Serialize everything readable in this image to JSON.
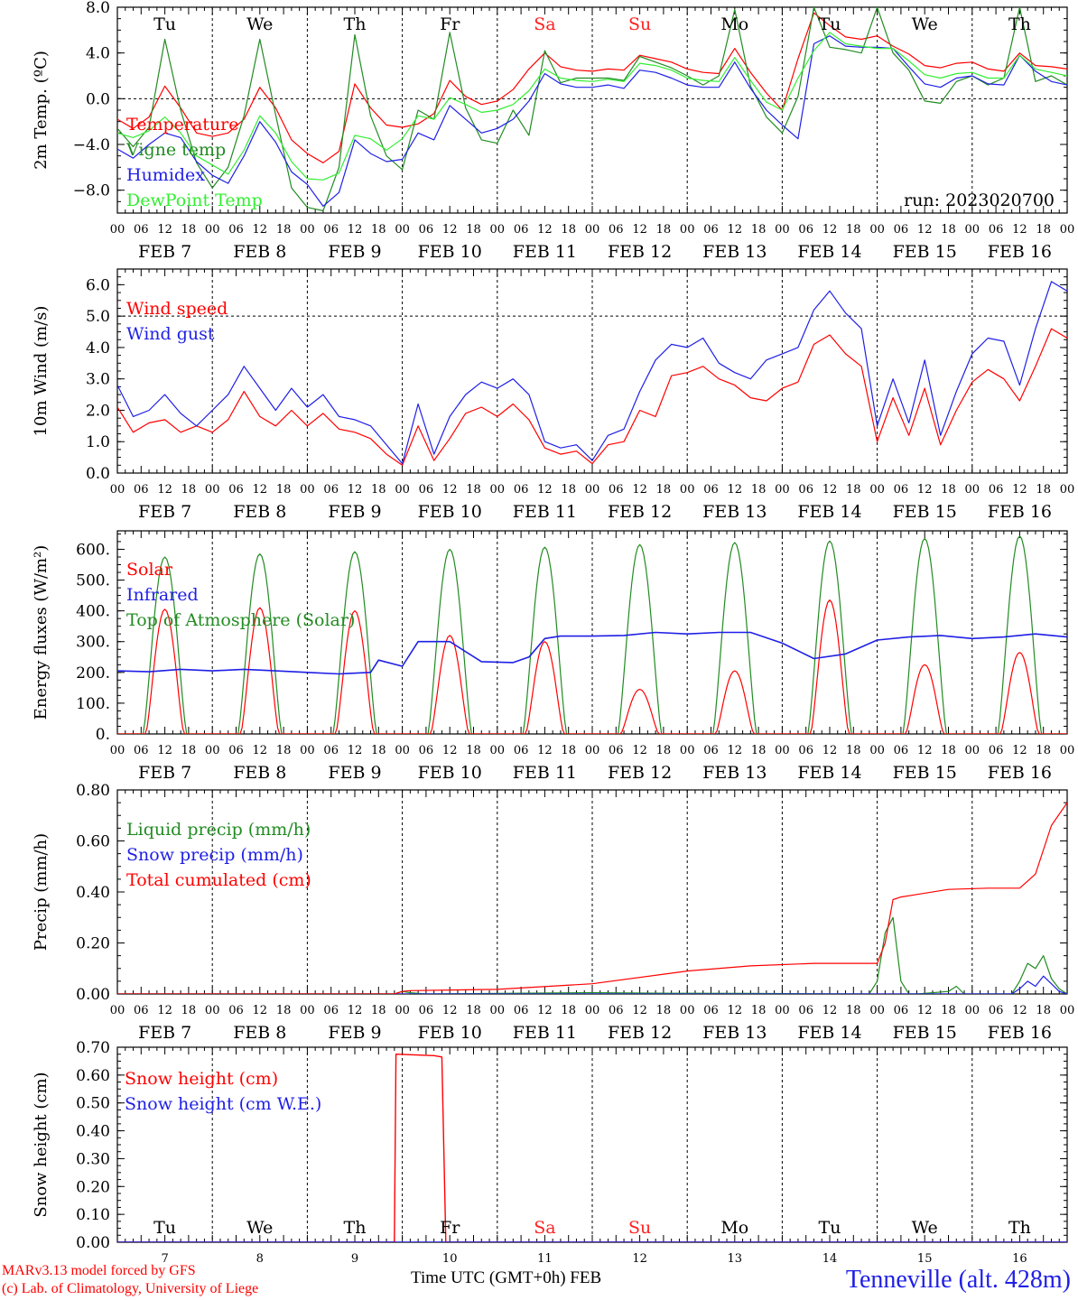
{
  "colors": {
    "red": "#ff0000",
    "green": "#228b22",
    "blue": "#1f1fe6",
    "lightgreen": "#33ee33",
    "axis": "#000000",
    "weekend": "#ff2020"
  },
  "days": {
    "weekday_labels": [
      "Tu",
      "We",
      "Th",
      "Fr",
      "Sa",
      "Su",
      "Mo",
      "Tu",
      "We",
      "Th"
    ],
    "weekend_flags": [
      false,
      false,
      false,
      false,
      true,
      true,
      false,
      false,
      false,
      false
    ],
    "date_labels": [
      "FEB  7",
      "FEB  8",
      "FEB  9",
      "FEB 10",
      "FEB 11",
      "FEB 12",
      "FEB 13",
      "FEB 14",
      "FEB 15",
      "FEB 16"
    ],
    "day_numbers": [
      "7",
      "8",
      "9",
      "10",
      "11",
      "12",
      "13",
      "14",
      "15",
      "16"
    ],
    "hour_ticks": [
      "00",
      "06",
      "12",
      "18"
    ],
    "final_tick": "00"
  },
  "footer": {
    "model": "MARv3.13 model forced by GFS",
    "lab": "(c) Lab. of Climatology, University of Liege",
    "xlabel": "Time UTC (GMT+0h) FEB",
    "station": "Tenneville (alt. 428m)"
  },
  "chart_data": [
    {
      "id": "temperature",
      "type": "line",
      "ylabel": "2m Temp. (ºC)",
      "ylim": [
        -10,
        8
      ],
      "ticks": [
        8,
        4,
        0,
        -4,
        -8
      ],
      "tick_labels": [
        "8.0",
        "4.0",
        "0.0",
        "−4.0",
        "−8.0"
      ],
      "ref_line": 0,
      "annotation": "run: 2023020700",
      "x_hours": [
        0,
        4,
        8,
        12,
        16,
        20,
        24,
        28,
        32,
        36,
        40,
        44,
        48,
        52,
        56,
        60,
        64,
        68,
        72,
        76,
        80,
        84,
        88,
        92,
        96,
        100,
        104,
        108,
        112,
        116,
        120,
        124,
        128,
        132,
        136,
        140,
        144,
        148,
        152,
        156,
        160,
        164,
        168,
        172,
        176,
        180,
        184,
        188,
        192,
        196,
        200,
        204,
        208,
        212,
        216,
        220,
        224,
        228,
        232,
        236,
        240
      ],
      "series": [
        {
          "name": "Temperature",
          "color": "red",
          "values": [
            -1.8,
            -2.6,
            -1.6,
            1.1,
            -0.8,
            -3.0,
            -3.3,
            -3.0,
            -1.8,
            1.0,
            -0.8,
            -3.6,
            -4.8,
            -5.6,
            -4.6,
            1.3,
            -0.8,
            -2.3,
            -2.5,
            -2.2,
            -1.3,
            1.6,
            0.2,
            -0.5,
            -0.2,
            0.8,
            2.6,
            4.0,
            2.8,
            2.5,
            2.4,
            2.6,
            2.5,
            3.8,
            3.5,
            3.2,
            2.6,
            2.3,
            2.2,
            4.4,
            2.3,
            0.5,
            -1.0,
            3.5,
            7.5,
            6.4,
            5.4,
            5.2,
            5.5,
            4.6,
            3.9,
            2.9,
            2.7,
            3.1,
            3.2,
            2.6,
            2.4,
            4.0,
            2.9,
            2.8,
            2.6
          ]
        },
        {
          "name": "Vigne temp",
          "color": "green",
          "values": [
            -2.6,
            -4.2,
            -2.5,
            5.2,
            -1.0,
            -5.6,
            -7.8,
            -6.0,
            -1.5,
            5.2,
            -1.4,
            -7.8,
            -9.5,
            -9.8,
            -6.0,
            5.6,
            -1.5,
            -5.0,
            -6.2,
            -1.0,
            -1.8,
            5.8,
            -0.8,
            -3.6,
            -3.9,
            -1.0,
            -3.2,
            4.2,
            1.4,
            1.8,
            1.8,
            1.8,
            1.6,
            3.7,
            3.2,
            2.7,
            2.0,
            1.2,
            2.0,
            7.8,
            1.1,
            -1.6,
            -3.0,
            0.2,
            8.0,
            4.5,
            4.3,
            4.0,
            8.0,
            4.0,
            2.5,
            -0.2,
            -0.4,
            1.5,
            2.0,
            1.2,
            1.8,
            8.0,
            1.5,
            2.0,
            1.2
          ]
        },
        {
          "name": "Humidex",
          "color": "blue",
          "values": [
            -4.4,
            -5.2,
            -4.0,
            -3.0,
            -3.4,
            -5.5,
            -6.7,
            -7.4,
            -5.0,
            -2.0,
            -3.8,
            -6.4,
            -7.5,
            -9.4,
            -8.2,
            -3.6,
            -4.8,
            -5.5,
            -5.3,
            -3.0,
            -3.6,
            -0.6,
            -1.8,
            -3.0,
            -2.6,
            -1.8,
            -0.2,
            2.2,
            1.3,
            1.0,
            1.0,
            1.2,
            0.9,
            2.5,
            2.3,
            1.8,
            1.2,
            1.0,
            1.0,
            3.2,
            0.9,
            -1.0,
            -2.3,
            -3.5,
            4.8,
            5.5,
            4.6,
            4.5,
            4.5,
            4.4,
            2.8,
            1.3,
            1.0,
            1.8,
            2.0,
            1.3,
            1.2,
            3.8,
            2.4,
            1.5,
            1.2
          ]
        },
        {
          "name": "DewPoint Temp",
          "color": "lightgreen",
          "values": [
            -3.0,
            -3.4,
            -2.8,
            -1.6,
            -3.0,
            -5.0,
            -5.8,
            -6.6,
            -4.5,
            -1.5,
            -3.0,
            -5.5,
            -7.0,
            -7.1,
            -6.5,
            -3.2,
            -3.5,
            -4.5,
            -3.5,
            -1.5,
            -1.8,
            0.1,
            -0.5,
            -1.2,
            -1.0,
            -0.5,
            0.7,
            2.6,
            1.8,
            1.6,
            1.5,
            1.7,
            1.5,
            3.1,
            2.9,
            2.5,
            1.8,
            1.6,
            1.5,
            3.6,
            1.6,
            -0.3,
            -1.0,
            1.8,
            4.2,
            5.8,
            4.8,
            4.6,
            4.4,
            4.4,
            3.3,
            2.1,
            1.8,
            2.2,
            2.3,
            1.8,
            1.8,
            3.8,
            2.6,
            2.3,
            2.0
          ]
        }
      ]
    },
    {
      "id": "wind",
      "type": "line",
      "ylabel": "10m Wind (m/s)",
      "ylim": [
        0,
        6.5
      ],
      "ticks": [
        0,
        1,
        2,
        3,
        4,
        5,
        6
      ],
      "tick_labels": [
        "0.0",
        "1.0",
        "2.0",
        "3.0",
        "4.0",
        "5.0",
        "6.0"
      ],
      "ref_line": 5,
      "x_hours": [
        0,
        4,
        8,
        12,
        16,
        20,
        24,
        28,
        32,
        36,
        40,
        44,
        48,
        52,
        56,
        60,
        64,
        68,
        72,
        76,
        80,
        84,
        88,
        92,
        96,
        100,
        104,
        108,
        112,
        116,
        120,
        124,
        128,
        132,
        136,
        140,
        144,
        148,
        152,
        156,
        160,
        164,
        168,
        172,
        176,
        180,
        184,
        188,
        192,
        196,
        200,
        204,
        208,
        212,
        216,
        220,
        224,
        228,
        232,
        236,
        240
      ],
      "series": [
        {
          "name": "Wind speed",
          "color": "red",
          "values": [
            2.1,
            1.3,
            1.6,
            1.7,
            1.3,
            1.5,
            1.3,
            1.7,
            2.6,
            1.8,
            1.5,
            2.0,
            1.5,
            1.9,
            1.4,
            1.3,
            1.1,
            0.6,
            0.25,
            1.5,
            0.4,
            1.1,
            1.9,
            2.1,
            1.8,
            2.2,
            1.7,
            0.8,
            0.6,
            0.7,
            0.3,
            0.9,
            1.0,
            2.0,
            1.8,
            3.1,
            3.2,
            3.4,
            3.0,
            2.8,
            2.4,
            2.3,
            2.7,
            2.9,
            4.1,
            4.4,
            3.8,
            3.4,
            1.0,
            2.4,
            1.2,
            2.7,
            0.9,
            2.0,
            2.9,
            3.3,
            3.0,
            2.3,
            3.4,
            4.6,
            4.3
          ]
        },
        {
          "name": "Wind gust",
          "color": "blue",
          "values": [
            2.8,
            1.8,
            2.0,
            2.5,
            1.9,
            1.5,
            2.0,
            2.5,
            3.4,
            2.7,
            2.0,
            2.7,
            2.1,
            2.5,
            1.8,
            1.7,
            1.5,
            0.9,
            0.3,
            2.2,
            0.6,
            1.8,
            2.5,
            2.9,
            2.7,
            3.0,
            2.5,
            1.0,
            0.8,
            0.9,
            0.4,
            1.2,
            1.4,
            2.6,
            3.6,
            4.1,
            4.0,
            4.3,
            3.5,
            3.2,
            3.0,
            3.6,
            3.8,
            4.0,
            5.2,
            5.8,
            5.1,
            4.6,
            1.5,
            3.0,
            1.6,
            3.6,
            1.2,
            2.6,
            3.8,
            4.3,
            4.2,
            2.8,
            4.6,
            6.1,
            5.8
          ]
        }
      ]
    },
    {
      "id": "energy",
      "type": "line",
      "ylabel": "Energy fluxes (W/m²)",
      "ylim": [
        0,
        660
      ],
      "ticks": [
        0,
        100,
        200,
        300,
        400,
        500,
        600
      ],
      "tick_labels": [
        "0.",
        "100.",
        "200.",
        "300.",
        "400.",
        "500.",
        "600."
      ],
      "ref_line": null,
      "solar_peaks": [
        405,
        410,
        400,
        320,
        300,
        145,
        205,
        435,
        225,
        265
      ],
      "toa_peaks": [
        575,
        585,
        592,
        600,
        607,
        615,
        622,
        627,
        635,
        643
      ],
      "series": [
        {
          "name": "Solar",
          "color": "red"
        },
        {
          "name": "Infrared",
          "color": "blue",
          "x_hours": [
            0,
            8,
            16,
            24,
            32,
            40,
            48,
            56,
            64,
            66,
            72,
            76,
            84,
            92,
            100,
            104,
            108,
            112,
            120,
            128,
            136,
            144,
            152,
            160,
            168,
            176,
            184,
            192,
            200,
            208,
            216,
            224,
            232,
            240
          ],
          "values": [
            205,
            202,
            210,
            205,
            210,
            205,
            200,
            195,
            200,
            240,
            220,
            300,
            300,
            235,
            232,
            250,
            310,
            318,
            318,
            320,
            330,
            325,
            330,
            330,
            295,
            245,
            260,
            305,
            315,
            320,
            310,
            315,
            325,
            315
          ]
        },
        {
          "name": "Top of Atmosphere (Solar)",
          "color": "green"
        }
      ]
    },
    {
      "id": "precip",
      "type": "line",
      "ylabel": "Precip (mm/h)",
      "ylim": [
        0,
        0.8
      ],
      "ticks": [
        0,
        0.2,
        0.4,
        0.6,
        0.8
      ],
      "tick_labels": [
        "0.00",
        "0.20",
        "0.40",
        "0.60",
        "0.80"
      ],
      "ref_line": null,
      "series": [
        {
          "name": "Liquid precip (mm/h)",
          "color": "green",
          "x_hours": [
            0,
            70,
            72,
            74,
            78,
            100,
            120,
            140,
            160,
            190,
            192,
            194,
            196,
            198,
            200,
            202,
            210,
            212,
            214,
            218,
            226,
            228,
            230,
            232,
            234,
            236,
            238,
            240
          ],
          "values": [
            0,
            0,
            0.01,
            0.005,
            0,
            0.003,
            0.005,
            0.003,
            0.002,
            0,
            0.05,
            0.24,
            0.3,
            0.05,
            0,
            0,
            0.01,
            0.03,
            0,
            0,
            0,
            0.05,
            0.12,
            0.1,
            0.15,
            0.06,
            0.02,
            0
          ]
        },
        {
          "name": "Snow precip (mm/h)",
          "color": "blue",
          "x_hours": [
            0,
            226,
            228,
            230,
            232,
            234,
            236,
            238,
            240
          ],
          "values": [
            0,
            0,
            0.02,
            0.05,
            0.03,
            0.07,
            0.04,
            0.01,
            0
          ]
        },
        {
          "name": "Total cumulated (cm)",
          "color": "red",
          "x_hours": [
            0,
            70,
            72,
            74,
            96,
            120,
            144,
            160,
            176,
            192,
            194,
            196,
            198,
            202,
            210,
            220,
            228,
            232,
            236,
            240
          ],
          "values": [
            0,
            0,
            0.01,
            0.013,
            0.018,
            0.04,
            0.09,
            0.11,
            0.12,
            0.12,
            0.2,
            0.37,
            0.38,
            0.39,
            0.41,
            0.415,
            0.415,
            0.47,
            0.66,
            0.75
          ]
        }
      ]
    },
    {
      "id": "snow",
      "type": "line",
      "ylabel": "Snow height (cm)",
      "ylim": [
        0,
        0.7
      ],
      "ticks": [
        0,
        0.1,
        0.2,
        0.3,
        0.4,
        0.5,
        0.6,
        0.7
      ],
      "tick_labels": [
        "0.00",
        "0.10",
        "0.20",
        "0.30",
        "0.40",
        "0.50",
        "0.60",
        "0.70"
      ],
      "ref_line": null,
      "series": [
        {
          "name": "Snow height (cm)",
          "color": "red",
          "x_hours": [
            0,
            70,
            70.4,
            80,
            82,
            83,
            240
          ],
          "values": [
            0,
            0,
            0.675,
            0.67,
            0.665,
            0,
            0
          ]
        },
        {
          "name": "Snow height (cm W.E.)",
          "color": "blue",
          "x_hours": [
            0,
            240
          ],
          "values": [
            0,
            0
          ]
        }
      ]
    }
  ]
}
